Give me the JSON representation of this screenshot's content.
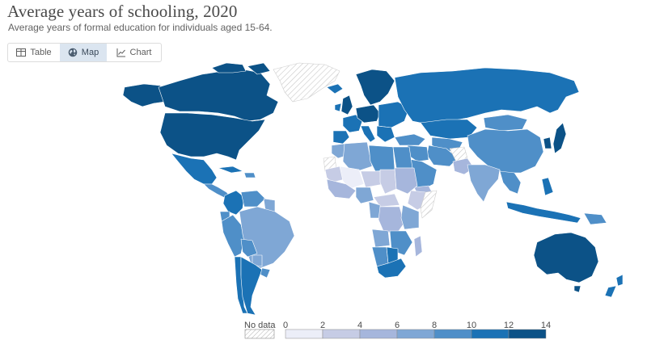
{
  "header": {
    "title": "Average years of schooling, 2020",
    "subtitle": "Average years of formal education for individuals aged 15-64."
  },
  "tabs": [
    {
      "label": "Table",
      "icon": "table-icon",
      "active": false
    },
    {
      "label": "Map",
      "icon": "globe-icon",
      "active": true
    },
    {
      "label": "Chart",
      "icon": "line-chart-icon",
      "active": false
    }
  ],
  "legend": {
    "no_data_label": "No data",
    "ticks": [
      "0",
      "2",
      "4",
      "6",
      "8",
      "10",
      "12",
      "14"
    ],
    "colors": [
      "#eceef8",
      "#c6cce5",
      "#a6b6dc",
      "#7fa7d5",
      "#4f8fc8",
      "#1b72b5",
      "#0c5287"
    ],
    "no_data_color": "#ffffff"
  },
  "colors": {
    "ocean": "#ffffff",
    "no_data_hatch": "#c8c8c8"
  }
}
